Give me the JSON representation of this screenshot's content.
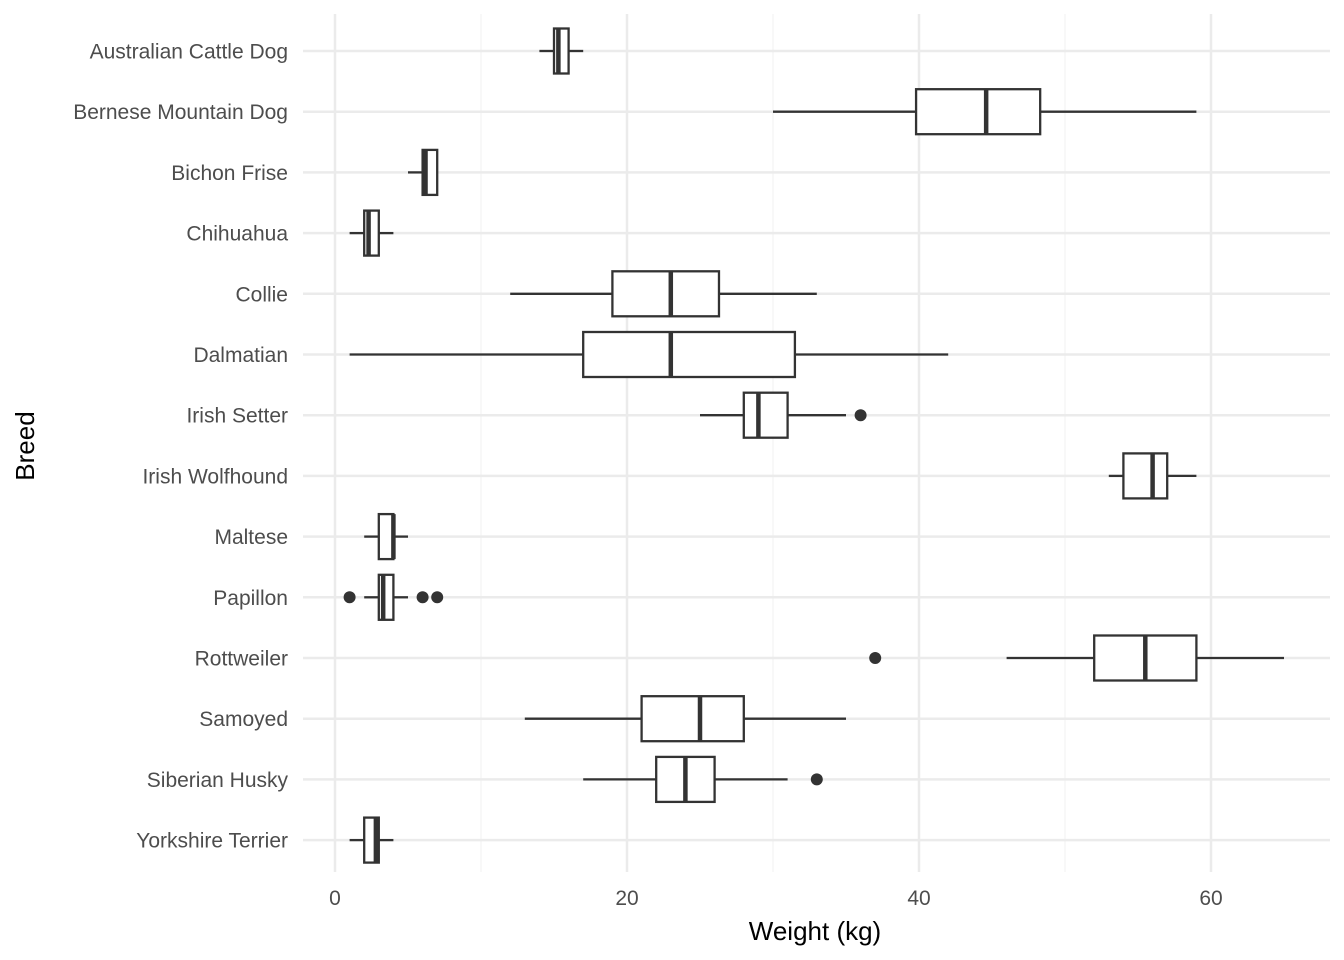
{
  "chart_data": {
    "type": "boxplot",
    "orientation": "horizontal",
    "xlabel": "Weight (kg)",
    "ylabel": "Breed",
    "xlim": [
      -2,
      68
    ],
    "x_ticks": [
      0,
      20,
      40,
      60
    ],
    "x_tick_labels": [
      "0",
      "20",
      "40",
      "60"
    ],
    "grid": true,
    "legend": "none",
    "colors": {
      "box_stroke": "#333333",
      "box_fill": "#ffffff",
      "grid_major": "#ebebeb",
      "grid_minor": "#f5f5f5",
      "outlier": "#333333"
    },
    "categories": [
      "Australian Cattle Dog",
      "Bernese Mountain Dog",
      "Bichon Frise",
      "Chihuahua",
      "Collie",
      "Dalmatian",
      "Irish Setter",
      "Irish Wolfhound",
      "Maltese",
      "Papillon",
      "Rottweiler",
      "Samoyed",
      "Siberian Husky",
      "Yorkshire Terrier"
    ],
    "boxes": [
      {
        "category": "Australian Cattle Dog",
        "whisker_low": 14,
        "q1": 15,
        "median": 15.3,
        "q3": 16,
        "whisker_high": 17,
        "outliers": []
      },
      {
        "category": "Bernese Mountain Dog",
        "whisker_low": 30,
        "q1": 39.8,
        "median": 44.6,
        "q3": 48.3,
        "whisker_high": 59,
        "outliers": []
      },
      {
        "category": "Bichon Frise",
        "whisker_low": 5,
        "q1": 6,
        "median": 6.2,
        "q3": 7,
        "whisker_high": 7,
        "outliers": []
      },
      {
        "category": "Chihuahua",
        "whisker_low": 1,
        "q1": 2,
        "median": 2.3,
        "q3": 3,
        "whisker_high": 4,
        "outliers": []
      },
      {
        "category": "Collie",
        "whisker_low": 12,
        "q1": 19,
        "median": 23,
        "q3": 26.3,
        "whisker_high": 33,
        "outliers": []
      },
      {
        "category": "Dalmatian",
        "whisker_low": 1,
        "q1": 17,
        "median": 23,
        "q3": 31.5,
        "whisker_high": 42,
        "outliers": []
      },
      {
        "category": "Irish Setter",
        "whisker_low": 25,
        "q1": 28,
        "median": 29,
        "q3": 31,
        "whisker_high": 35,
        "outliers": [
          36
        ]
      },
      {
        "category": "Irish Wolfhound",
        "whisker_low": 53,
        "q1": 54,
        "median": 56,
        "q3": 57,
        "whisker_high": 59,
        "outliers": []
      },
      {
        "category": "Maltese",
        "whisker_low": 2,
        "q1": 3,
        "median": 4,
        "q3": 4,
        "whisker_high": 5,
        "outliers": []
      },
      {
        "category": "Papillon",
        "whisker_low": 2,
        "q1": 3,
        "median": 3.3,
        "q3": 4,
        "whisker_high": 5,
        "outliers": [
          1,
          6,
          7
        ]
      },
      {
        "category": "Rottweiler",
        "whisker_low": 46,
        "q1": 52,
        "median": 55.5,
        "q3": 59,
        "whisker_high": 65,
        "outliers": [
          37
        ]
      },
      {
        "category": "Samoyed",
        "whisker_low": 13,
        "q1": 21,
        "median": 25,
        "q3": 28,
        "whisker_high": 35,
        "outliers": []
      },
      {
        "category": "Siberian Husky",
        "whisker_low": 17,
        "q1": 22,
        "median": 24,
        "q3": 26,
        "whisker_high": 31,
        "outliers": [
          33
        ]
      },
      {
        "category": "Yorkshire Terrier",
        "whisker_low": 1,
        "q1": 2,
        "median": 2.8,
        "q3": 3,
        "whisker_high": 4,
        "outliers": []
      }
    ]
  }
}
